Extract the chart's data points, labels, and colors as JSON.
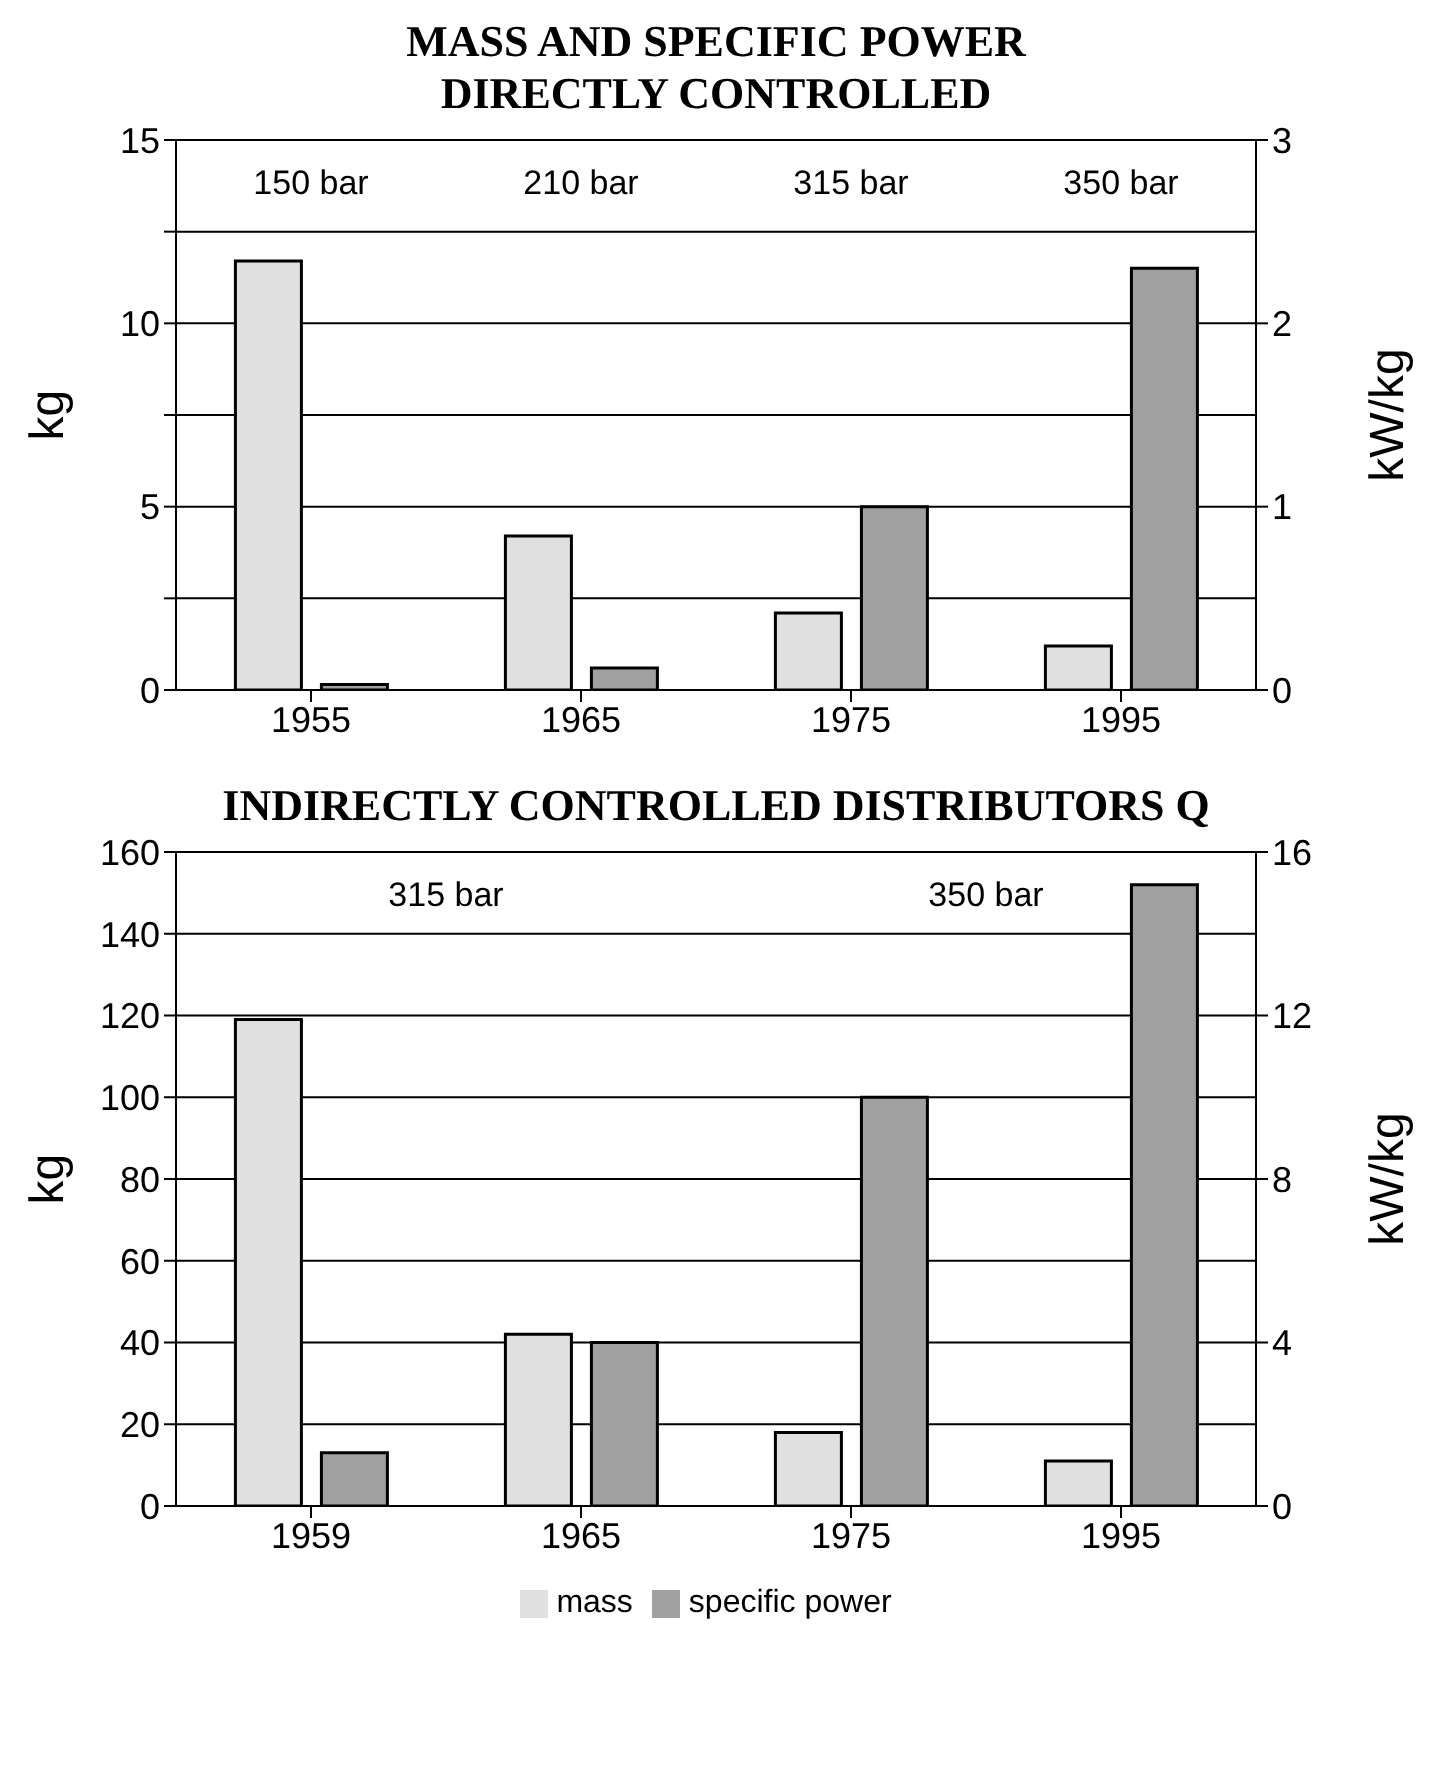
{
  "chart_data": [
    {
      "type": "bar",
      "title": "MASS AND SPECIFIC POWER DIRECTLY CONTROLLED",
      "ylabel": "kg",
      "y2label": "kW/kg",
      "categories": [
        "1955",
        "1965",
        "1975",
        "1995"
      ],
      "series": [
        {
          "color": "#e0e0e0",
          "values": [
            11.7,
            4.2,
            2.1,
            1.2
          ]
        },
        {
          "color": "#a0a0a0",
          "axis": "y2",
          "values": [
            0.03,
            0.12,
            1.0,
            2.3
          ]
        }
      ],
      "ylim": [
        0,
        15
      ],
      "yticks": [
        0,
        {
          "value": 2.5,
          "label": null
        },
        5,
        {
          "value": 7.5,
          "label": null
        },
        10,
        {
          "value": 12.5,
          "label": null
        },
        15
      ],
      "y2lim": [
        0,
        3
      ],
      "y2ticks": [
        0,
        1,
        2,
        3
      ],
      "grid": "y",
      "annotations": [
        "150 bar",
        "210 bar",
        "315 bar",
        "350 bar"
      ]
    },
    {
      "type": "bar",
      "title": "INDIRECTLY CONTROLLED DISTRIBUTORS Q",
      "ylabel": "kg",
      "y2label": "kW/kg",
      "categories": [
        "1959",
        "1965",
        "1975",
        "1995"
      ],
      "series": [
        {
          "name": "mass",
          "color": "#e0e0e0",
          "values": [
            119,
            42,
            18,
            11
          ]
        },
        {
          "name": "specific power",
          "color": "#a0a0a0",
          "axis": "y2",
          "values": [
            1.3,
            4.0,
            10.0,
            15.2
          ]
        }
      ],
      "ylim": [
        0,
        160
      ],
      "yticks": [
        0,
        20,
        40,
        60,
        80,
        100,
        120,
        140,
        160
      ],
      "y2lim": [
        0,
        16
      ],
      "y2ticks": [
        0,
        4,
        8,
        12,
        16
      ],
      "grid": "y",
      "legend": "bottom",
      "annotations": [
        "315 bar",
        "350 bar"
      ]
    }
  ]
}
